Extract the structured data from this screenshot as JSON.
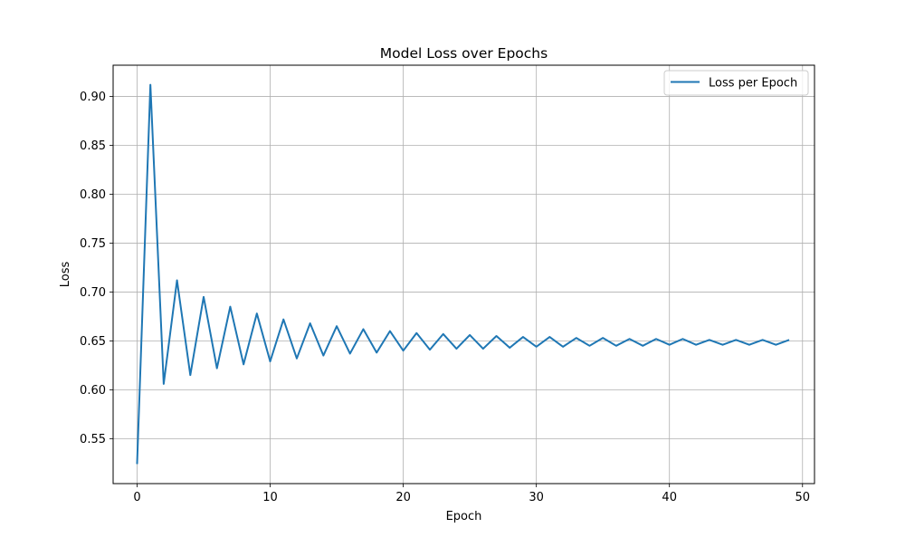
{
  "chart_data": {
    "type": "line",
    "title": "Model Loss over Epochs",
    "xlabel": "Epoch",
    "ylabel": "Loss",
    "xlim": [
      -1.8,
      50.9
    ],
    "ylim": [
      0.504,
      0.932
    ],
    "xticks": [
      0,
      10,
      20,
      30,
      40,
      50
    ],
    "yticks": [
      0.55,
      0.6,
      0.65,
      0.7,
      0.75,
      0.8,
      0.85,
      0.9
    ],
    "grid": true,
    "legend_position": "top-right",
    "series": [
      {
        "name": "Loss per Epoch",
        "color": "#1f77b4",
        "x": [
          0,
          1,
          2,
          3,
          4,
          5,
          6,
          7,
          8,
          9,
          10,
          11,
          12,
          13,
          14,
          15,
          16,
          17,
          18,
          19,
          20,
          21,
          22,
          23,
          24,
          25,
          26,
          27,
          28,
          29,
          30,
          31,
          32,
          33,
          34,
          35,
          36,
          37,
          38,
          39,
          40,
          41,
          42,
          43,
          44,
          45,
          46,
          47,
          48,
          49
        ],
        "y": [
          0.524,
          0.912,
          0.606,
          0.712,
          0.615,
          0.695,
          0.622,
          0.685,
          0.626,
          0.678,
          0.629,
          0.672,
          0.632,
          0.668,
          0.635,
          0.665,
          0.637,
          0.662,
          0.638,
          0.66,
          0.64,
          0.658,
          0.641,
          0.657,
          0.642,
          0.656,
          0.642,
          0.655,
          0.643,
          0.654,
          0.644,
          0.654,
          0.644,
          0.653,
          0.645,
          0.653,
          0.645,
          0.652,
          0.645,
          0.652,
          0.646,
          0.652,
          0.646,
          0.651,
          0.646,
          0.651,
          0.646,
          0.651,
          0.646,
          0.651
        ]
      }
    ]
  }
}
